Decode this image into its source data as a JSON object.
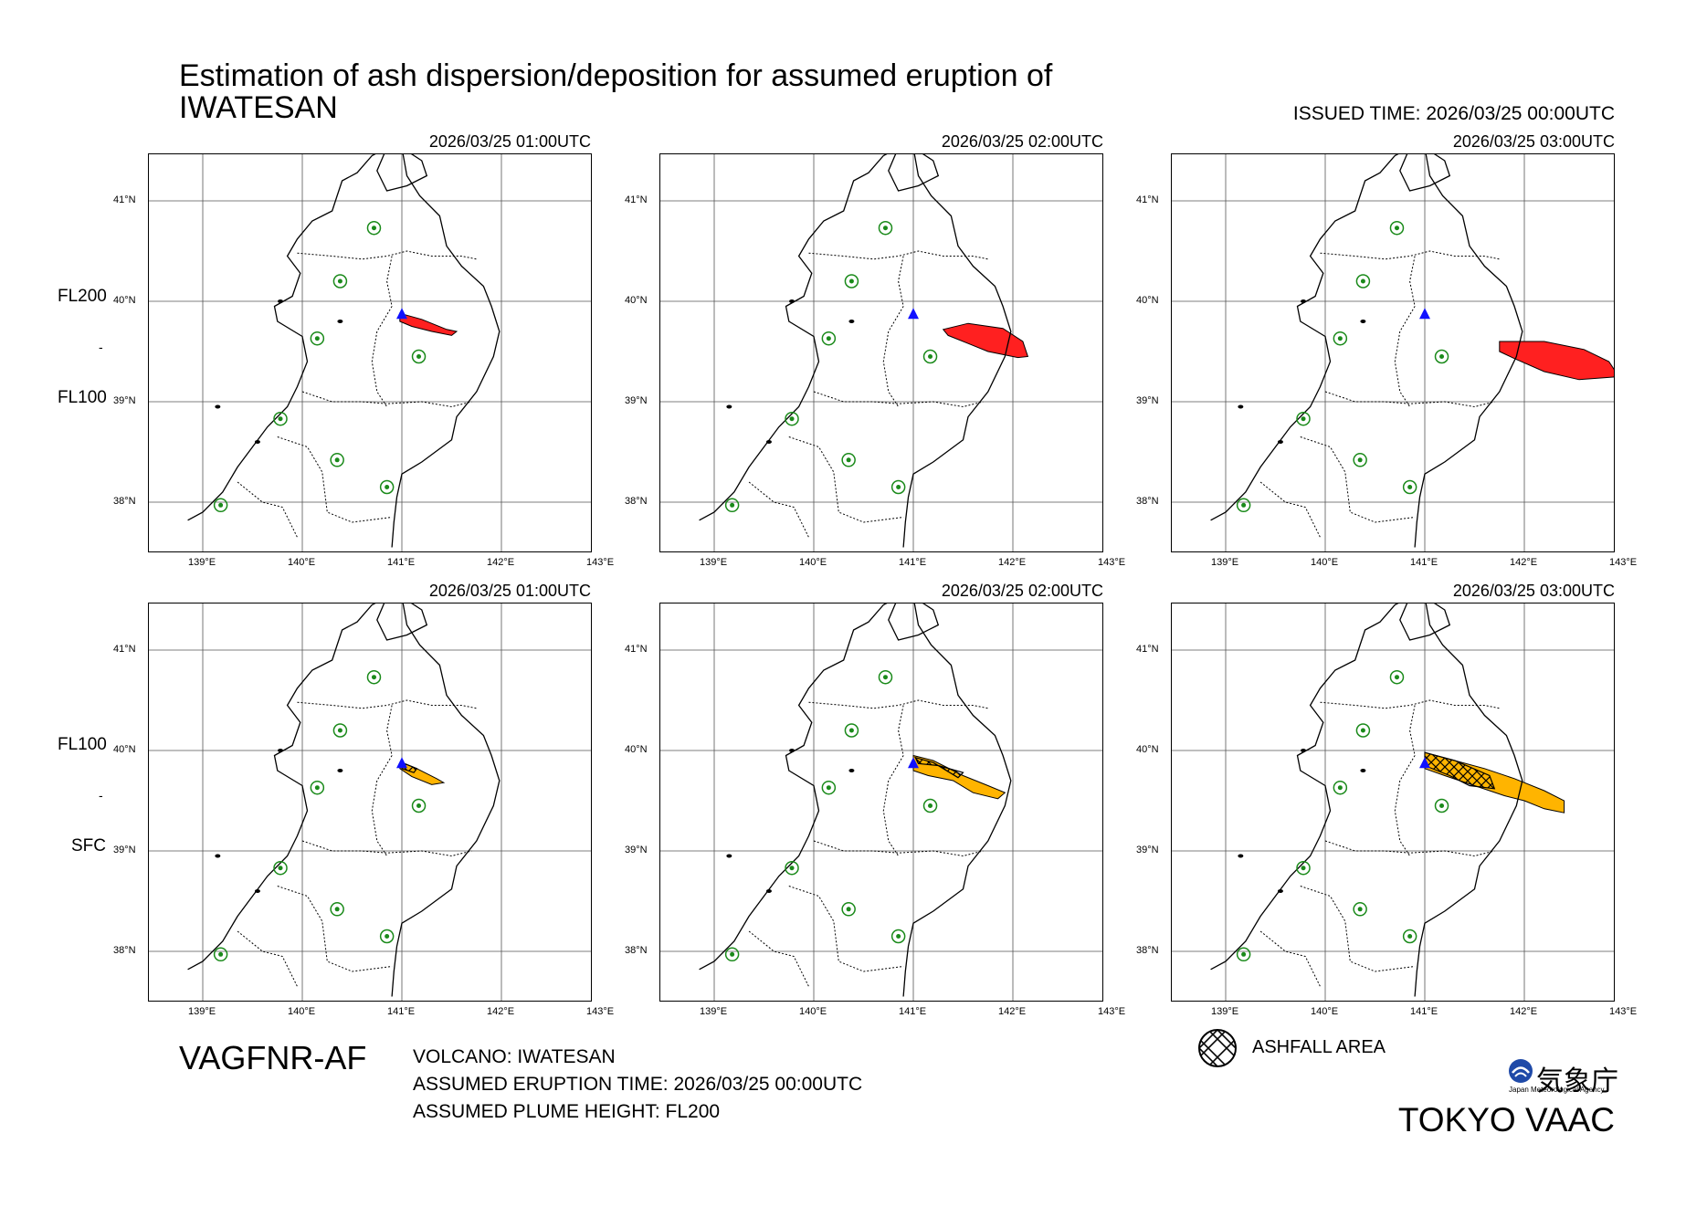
{
  "title": "Estimation of ash dispersion/deposition for assumed eruption of\nIWATESAN",
  "issued_time": "ISSUED TIME: 2026/03/25 00:00UTC",
  "product_code": "VAGFNR-AF",
  "info": {
    "volcano": "VOLCANO: IWATESAN",
    "eruption_time": "ASSUMED ERUPTION TIME: 2026/03/25 00:00UTC",
    "plume_height": "ASSUMED PLUME HEIGHT: FL200"
  },
  "legend": {
    "ashfall_label": "ASHFALL AREA"
  },
  "agency": {
    "name_jp": "気象庁",
    "name_en": "Japan Meteorological Agency"
  },
  "center": "TOKYO VAAC",
  "rows": [
    {
      "level_top": "FL200",
      "level_sep": "-",
      "level_bottom": "FL100",
      "times": [
        "2026/03/25 01:00UTC",
        "2026/03/25 02:00UTC",
        "2026/03/25 03:00UTC"
      ]
    },
    {
      "level_top": "FL100",
      "level_sep": "-",
      "level_bottom": "SFC",
      "times": [
        "2026/03/25 01:00UTC",
        "2026/03/25 02:00UTC",
        "2026/03/25 03:00UTC"
      ]
    }
  ],
  "axes": {
    "lon_labels": [
      "139°E",
      "140°E",
      "141°E",
      "142°E",
      "143°E"
    ],
    "lat_labels": [
      "41°N",
      "40°N",
      "39°N",
      "38°N"
    ]
  },
  "colors": {
    "upper_ash": "#ff2020",
    "lower_ash": "#ffb400",
    "volcano_marker": "#1010ff",
    "city_marker": "#1a8a1a"
  }
}
